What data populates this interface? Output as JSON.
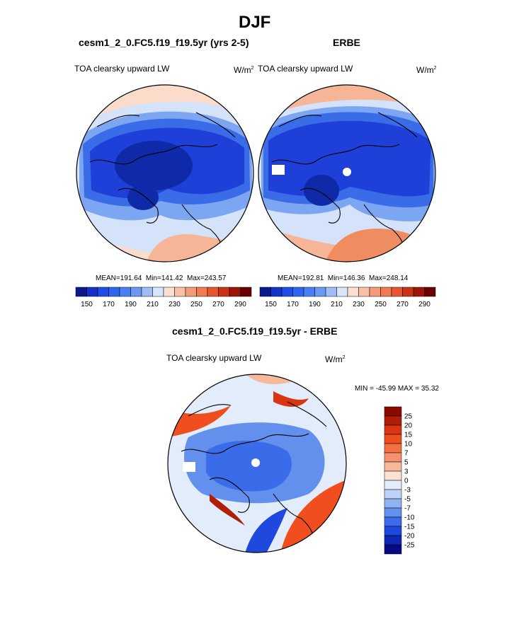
{
  "figure": {
    "title": "DJF",
    "left_panel": {
      "title": "cesm1_2_0.FC5.f19_f19.5yr (yrs 2-5)",
      "variable": "TOA clearsky upward LW",
      "units_base": "W/m",
      "units_exp": "2",
      "stats": {
        "mean_label": "MEAN=",
        "mean": "191.64",
        "min_label": "Min=",
        "min": "141.42",
        "max_label": "Max=",
        "max": "243.57"
      }
    },
    "right_panel": {
      "title": "ERBE",
      "variable": "TOA clearsky upward LW",
      "units_base": "W/m",
      "units_exp": "2",
      "stats": {
        "mean_label": "MEAN=",
        "mean": "192.81",
        "min_label": "Min=",
        "min": "146.36",
        "max_label": "Max=",
        "max": "248.14"
      }
    },
    "diff_panel": {
      "title": "cesm1_2_0.FC5.f19_f19.5yr - ERBE",
      "variable": "TOA clearsky upward LW",
      "units_base": "W/m",
      "units_exp": "2",
      "minmax": "MIN = -45.99 MAX =  35.32"
    }
  },
  "chart_data": [
    {
      "type": "heatmap",
      "projection": "north-polar-stereographic",
      "title": "cesm1_2_0.FC5.f19_f19.5yr (yrs 2-5)",
      "field": "TOA clearsky upward LW",
      "units": "W/m2",
      "mean": 191.64,
      "min": 141.42,
      "max": 243.57,
      "colorbar": {
        "levels": [
          150,
          160,
          170,
          180,
          190,
          200,
          210,
          220,
          230,
          240,
          250,
          260,
          270,
          280,
          290
        ],
        "tick_labels": [
          "150",
          "170",
          "190",
          "210",
          "230",
          "250",
          "270",
          "290"
        ],
        "colors": [
          "#0a1a8c",
          "#1433c8",
          "#1e4ee6",
          "#2f66f0",
          "#4a80f4",
          "#6b99f2",
          "#9fbdf4",
          "#d7e6fb",
          "#fbe0d2",
          "#f8c1a6",
          "#f49c79",
          "#f07a52",
          "#e8552e",
          "#cc3214",
          "#9c1508",
          "#6a0000"
        ]
      }
    },
    {
      "type": "heatmap",
      "projection": "north-polar-stereographic",
      "title": "ERBE",
      "field": "TOA clearsky upward LW",
      "units": "W/m2",
      "mean": 192.81,
      "min": 146.36,
      "max": 248.14,
      "colorbar": {
        "levels": [
          150,
          160,
          170,
          180,
          190,
          200,
          210,
          220,
          230,
          240,
          250,
          260,
          270,
          280,
          290
        ],
        "tick_labels": [
          "150",
          "170",
          "190",
          "210",
          "230",
          "250",
          "270",
          "290"
        ],
        "colors": [
          "#0a1a8c",
          "#1433c8",
          "#1e4ee6",
          "#2f66f0",
          "#4a80f4",
          "#6b99f2",
          "#9fbdf4",
          "#d7e6fb",
          "#fbe0d2",
          "#f8c1a6",
          "#f49c79",
          "#f07a52",
          "#e8552e",
          "#cc3214",
          "#9c1508",
          "#6a0000"
        ]
      }
    },
    {
      "type": "heatmap",
      "projection": "north-polar-stereographic",
      "title": "cesm1_2_0.FC5.f19_f19.5yr - ERBE",
      "field": "TOA clearsky upward LW",
      "units": "W/m2",
      "min": -45.99,
      "max": 35.32,
      "colorbar": {
        "orientation": "vertical",
        "tick_labels": [
          "25",
          "20",
          "15",
          "10",
          "7",
          "5",
          "3",
          "0",
          "-3",
          "-5",
          "-7",
          "-10",
          "-15",
          "-20",
          "-25"
        ],
        "colors": [
          "#8a0a00",
          "#b11e06",
          "#d83510",
          "#f04e1e",
          "#f47040",
          "#f59070",
          "#f8b89c",
          "#fbe2d4",
          "#e2ecfb",
          "#bcd2f6",
          "#8fb3f1",
          "#6290ec",
          "#3a6cea",
          "#1e48de",
          "#1026b4",
          "#050a84"
        ]
      }
    }
  ],
  "map_colors": {
    "deep": "#1e40d8",
    "dark": "#0e2aa8",
    "mid": "#3a6ce8",
    "light": "#7da6f2",
    "pale": "#d4e3fa",
    "warm1": "#fbdccb",
    "warm2": "#f6b596",
    "warm3": "#f08c62",
    "hot": "#e8552e",
    "missing": "#ffffff"
  }
}
